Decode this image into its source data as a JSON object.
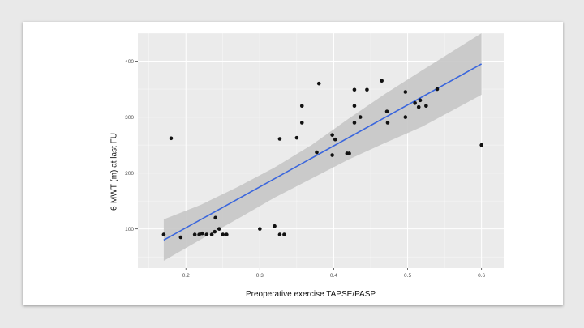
{
  "chart_data": {
    "type": "scatter",
    "title": "",
    "xlabel": "Preoperative exercise TAPSE/PASP",
    "ylabel": "6-MWT (m) at last FU",
    "xlim": [
      0.135,
      0.63
    ],
    "ylim": [
      30,
      450
    ],
    "x_ticks": [
      0.2,
      0.3,
      0.4,
      0.5,
      0.6
    ],
    "x_tick_labels": [
      "0.2",
      "0.3",
      "0.4",
      "0.5",
      "0.6"
    ],
    "y_ticks": [
      100,
      200,
      300,
      400
    ],
    "y_tick_labels": [
      "100",
      "200",
      "300",
      "400"
    ],
    "grid": true,
    "legend": "none",
    "colors": {
      "panel": "#ebebeb",
      "grid": "#ffffff",
      "point": "#111111",
      "fit_line": "#3a66dd",
      "ci_band": "#c6c6c6"
    },
    "points": [
      {
        "x": 0.17,
        "y": 90
      },
      {
        "x": 0.18,
        "y": 262
      },
      {
        "x": 0.193,
        "y": 85
      },
      {
        "x": 0.212,
        "y": 90
      },
      {
        "x": 0.218,
        "y": 90
      },
      {
        "x": 0.222,
        "y": 92
      },
      {
        "x": 0.228,
        "y": 90
      },
      {
        "x": 0.235,
        "y": 90
      },
      {
        "x": 0.239,
        "y": 95
      },
      {
        "x": 0.24,
        "y": 120
      },
      {
        "x": 0.245,
        "y": 100
      },
      {
        "x": 0.25,
        "y": 90
      },
      {
        "x": 0.255,
        "y": 90
      },
      {
        "x": 0.3,
        "y": 100
      },
      {
        "x": 0.32,
        "y": 105
      },
      {
        "x": 0.327,
        "y": 90
      },
      {
        "x": 0.333,
        "y": 90
      },
      {
        "x": 0.327,
        "y": 261
      },
      {
        "x": 0.35,
        "y": 263
      },
      {
        "x": 0.357,
        "y": 290
      },
      {
        "x": 0.357,
        "y": 320
      },
      {
        "x": 0.38,
        "y": 360
      },
      {
        "x": 0.377,
        "y": 237
      },
      {
        "x": 0.398,
        "y": 268
      },
      {
        "x": 0.402,
        "y": 260
      },
      {
        "x": 0.398,
        "y": 232
      },
      {
        "x": 0.418,
        "y": 235
      },
      {
        "x": 0.421,
        "y": 235
      },
      {
        "x": 0.428,
        "y": 349
      },
      {
        "x": 0.428,
        "y": 320
      },
      {
        "x": 0.428,
        "y": 290
      },
      {
        "x": 0.436,
        "y": 300
      },
      {
        "x": 0.445,
        "y": 349
      },
      {
        "x": 0.465,
        "y": 365
      },
      {
        "x": 0.472,
        "y": 310
      },
      {
        "x": 0.473,
        "y": 290
      },
      {
        "x": 0.497,
        "y": 345
      },
      {
        "x": 0.497,
        "y": 300
      },
      {
        "x": 0.51,
        "y": 325
      },
      {
        "x": 0.515,
        "y": 318
      },
      {
        "x": 0.517,
        "y": 330
      },
      {
        "x": 0.525,
        "y": 320
      },
      {
        "x": 0.54,
        "y": 350
      },
      {
        "x": 0.6,
        "y": 250
      }
    ],
    "fit_line": {
      "x": [
        0.17,
        0.6
      ],
      "y": [
        80,
        395
      ]
    },
    "confidence_band": {
      "x": [
        0.17,
        0.22,
        0.27,
        0.32,
        0.37,
        0.42,
        0.47,
        0.52,
        0.6
      ],
      "upper": [
        117,
        143,
        175,
        210,
        250,
        297,
        342,
        384,
        450
      ],
      "lower": [
        43,
        81,
        118,
        156,
        190,
        224,
        254,
        283,
        340
      ]
    }
  }
}
